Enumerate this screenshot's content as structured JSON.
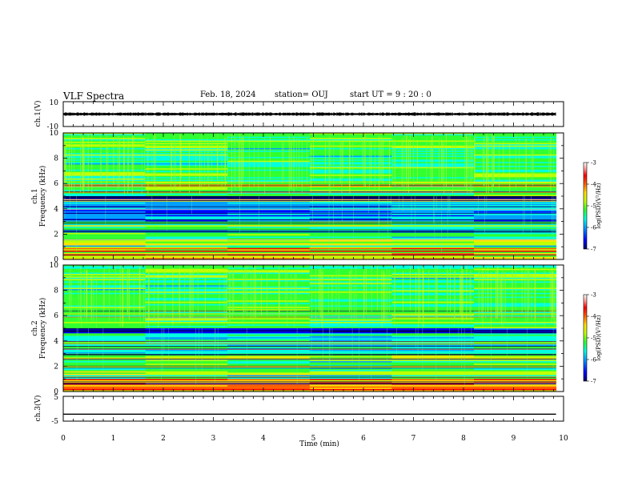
{
  "header": {
    "title": "VLF Spectra",
    "date": "Feb. 18, 2024",
    "station": "station= OUJ",
    "start_ut": "start  UT =  9 : 20 : 0"
  },
  "chart_data": [
    {
      "type": "line",
      "panel": "ch1-waveform",
      "ylabel": "ch.1(V)",
      "ylim": [
        -10,
        10
      ],
      "yticks": [
        "10",
        "-10"
      ],
      "xlim": [
        0,
        10
      ],
      "series": [
        {
          "values_note": "",
          "mean": 0,
          "approx_amplitude": 1.0,
          "x_end": 9.85
        }
      ],
      "grid": false
    },
    {
      "type": "heatmap",
      "panel": "ch1-spectrogram",
      "ylabel": "ch.1\nFrequency (kHz)",
      "ylabel_lines": [
        "ch.1",
        "Frequency (kHz)"
      ],
      "ylim": [
        0,
        10
      ],
      "yticks": [
        "0",
        "2",
        "4",
        "6",
        "8",
        "10"
      ],
      "xlim": [
        0,
        9.85
      ],
      "colorbar": {
        "label": "log(PSD)(V²/Hz)",
        "range": [
          -7,
          -3
        ],
        "ticks": [
          "-3",
          "-4",
          "-5",
          "-6",
          "-7"
        ]
      }
    },
    {
      "type": "heatmap",
      "panel": "ch2-spectrogram",
      "ylabel_lines": [
        "ch.2",
        "Frequency (kHz)"
      ],
      "ylim": [
        0,
        10
      ],
      "yticks": [
        "0",
        "2",
        "4",
        "6",
        "8",
        "10"
      ],
      "xlim": [
        0,
        9.85
      ],
      "colorbar": {
        "label": "log(PSD)(V²/Hz)",
        "range": [
          -7,
          -3
        ],
        "ticks": [
          "-3",
          "-4",
          "-5",
          "-6",
          "-7"
        ]
      }
    },
    {
      "type": "line",
      "panel": "ch3-waveform",
      "ylabel": "ch.3(V)",
      "ylim": [
        -5,
        5
      ],
      "yticks": [
        "5",
        "-5"
      ],
      "xlim": [
        0,
        10
      ],
      "series": [
        {
          "constant_value": -2.2,
          "x_end": 9.85
        }
      ],
      "grid": false
    }
  ],
  "xaxis": {
    "label": "Time  (min)",
    "ticks": [
      "0",
      "1",
      "2",
      "3",
      "4",
      "5",
      "6",
      "7",
      "8",
      "9",
      "10"
    ],
    "range": [
      0,
      10
    ]
  },
  "colors": {
    "frame": "#000000",
    "colormap": [
      "#000060",
      "#0000ff",
      "#00a0ff",
      "#00ffe0",
      "#30ff30",
      "#c0ff00",
      "#ffe000",
      "#ff6000",
      "#ff0000",
      "#ffa0a0",
      "#ffffff"
    ]
  }
}
